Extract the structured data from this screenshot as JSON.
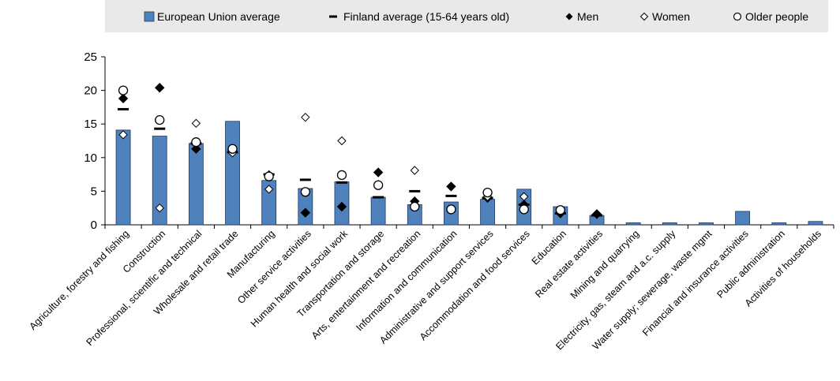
{
  "chart_data": {
    "type": "bar",
    "categories": [
      "Agriculture, forestry and fishing",
      "Construction",
      "Professional, scientific and technical",
      "Wholesale and retail trade",
      "Manufacturing",
      "Other service activities",
      "Human health and social work",
      "Transportation and storage",
      "Arts, entertainment and recreation",
      "Information and communication",
      "Administrative and support services",
      "Accommodation and food services",
      "Education",
      "Real estate activities",
      "Mining and quarrying",
      "Electricity, gas, steam and a.c. supply",
      "Water supply; sewerage, waste mgmt",
      "Financial and insurance activities",
      "Public administration",
      "Activities of households"
    ],
    "series": [
      {
        "name": "European Union average",
        "type": "bar",
        "color": "#4f81bd",
        "values": [
          14.1,
          13.2,
          12.1,
          15.4,
          6.6,
          5.4,
          6.4,
          4.1,
          3.0,
          3.4,
          3.8,
          5.3,
          2.7,
          1.4,
          0.3,
          0.3,
          0.3,
          2.0,
          0.3,
          0.5
        ]
      },
      {
        "name": "Finland average (15-64 years old)",
        "type": "dash",
        "color": "#000000",
        "values": [
          17.2,
          14.3,
          12.1,
          10.8,
          7.5,
          6.7,
          6.3,
          4.1,
          5.0,
          4.3,
          4.0,
          3.0,
          1.7,
          1.4,
          null,
          null,
          null,
          null,
          null,
          null
        ]
      },
      {
        "name": "Men",
        "type": "filled-diamond",
        "color": "#000000",
        "values": [
          18.8,
          20.4,
          11.3,
          11.2,
          7.4,
          1.8,
          2.7,
          7.8,
          3.5,
          5.7,
          4.0,
          3.0,
          1.7,
          1.6,
          null,
          null,
          null,
          null,
          null,
          null
        ]
      },
      {
        "name": "Women",
        "type": "open-diamond",
        "color": "#000000",
        "values": [
          13.4,
          2.5,
          15.1,
          10.7,
          5.3,
          16.0,
          12.5,
          6.0,
          8.1,
          2.2,
          4.2,
          4.2,
          2.1,
          null,
          null,
          null,
          null,
          null,
          null,
          null
        ]
      },
      {
        "name": "Older people",
        "type": "open-circle",
        "color": "#000000",
        "values": [
          20.0,
          15.6,
          12.3,
          11.3,
          7.2,
          4.9,
          7.4,
          5.9,
          2.7,
          2.3,
          4.8,
          2.3,
          2.2,
          null,
          null,
          null,
          null,
          null,
          null,
          null
        ]
      }
    ],
    "yticks": [
      0,
      5,
      10,
      15,
      20,
      25
    ],
    "ylim": [
      0,
      25
    ],
    "grid": false,
    "legend_position": "top"
  }
}
